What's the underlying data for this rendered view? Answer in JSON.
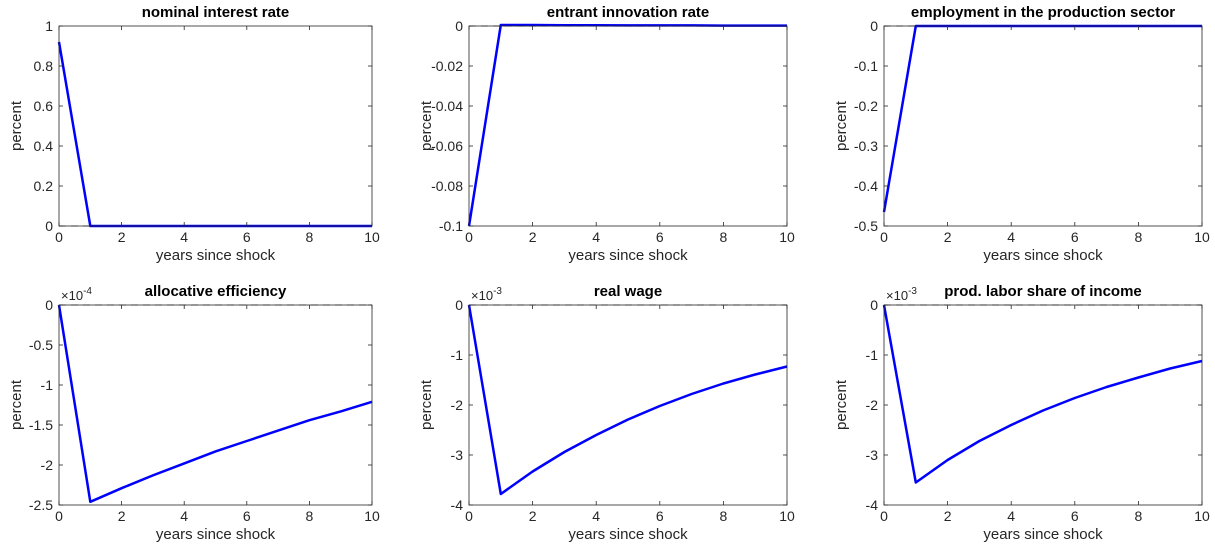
{
  "chart_data": [
    {
      "type": "line",
      "title": "nominal interest rate",
      "xlabel": "years since shock",
      "ylabel": "percent",
      "x": [
        0,
        1,
        2,
        3,
        4,
        5,
        6,
        7,
        8,
        9,
        10
      ],
      "values": [
        0.92,
        0,
        0,
        0,
        0,
        0,
        0,
        0,
        0,
        0,
        0
      ],
      "color": "#0000ff",
      "xlim": [
        0,
        10
      ],
      "xticks": [
        0,
        2,
        4,
        6,
        8,
        10
      ],
      "ylim": [
        0,
        1
      ],
      "yticks": [
        0,
        0.2,
        0.4,
        0.6,
        0.8,
        1
      ],
      "zero_line": true
    },
    {
      "type": "line",
      "title": "entrant innovation rate",
      "xlabel": "years since shock",
      "ylabel": "percent",
      "x": [
        0,
        1,
        2,
        3,
        4,
        5,
        6,
        7,
        8,
        9,
        10
      ],
      "values": [
        -0.1,
        0.0005,
        0.0005,
        0.0004,
        0.0004,
        0.0003,
        0.0003,
        0.0003,
        0.0002,
        0.0002,
        0.0002
      ],
      "color": "#0000ff",
      "xlim": [
        0,
        10
      ],
      "xticks": [
        0,
        2,
        4,
        6,
        8,
        10
      ],
      "ylim": [
        -0.1,
        0
      ],
      "yticks": [
        -0.1,
        -0.08,
        -0.06,
        -0.04,
        -0.02,
        0
      ],
      "zero_line": true
    },
    {
      "type": "line",
      "title": "employment in the production sector",
      "xlabel": "years since shock",
      "ylabel": "percent",
      "x": [
        0,
        1,
        2,
        3,
        4,
        5,
        6,
        7,
        8,
        9,
        10
      ],
      "values": [
        -0.465,
        0,
        0,
        0,
        0,
        0,
        0,
        0,
        0,
        0,
        0
      ],
      "color": "#0000ff",
      "xlim": [
        0,
        10
      ],
      "xticks": [
        0,
        2,
        4,
        6,
        8,
        10
      ],
      "ylim": [
        -0.5,
        0
      ],
      "yticks": [
        -0.5,
        -0.4,
        -0.3,
        -0.2,
        -0.1,
        0
      ],
      "zero_line": true
    },
    {
      "type": "line",
      "title": "allocative efficiency",
      "xlabel": "years since shock",
      "ylabel": "percent",
      "y_multiplier_base": "×10",
      "y_multiplier_exponent": "-4",
      "x": [
        0,
        1,
        2,
        3,
        4,
        5,
        6,
        7,
        8,
        9,
        10
      ],
      "values": [
        0,
        -2.46,
        -2.29,
        -2.13,
        -1.98,
        -1.83,
        -1.7,
        -1.57,
        -1.44,
        -1.33,
        -1.21
      ],
      "color": "#0000ff",
      "xlim": [
        0,
        10
      ],
      "xticks": [
        0,
        2,
        4,
        6,
        8,
        10
      ],
      "ylim": [
        -2.5,
        0
      ],
      "yticks": [
        -2.5,
        -2,
        -1.5,
        -1,
        -0.5,
        0
      ],
      "zero_line": true
    },
    {
      "type": "line",
      "title": "real wage",
      "xlabel": "years since shock",
      "ylabel": "percent",
      "y_multiplier_base": "×10",
      "y_multiplier_exponent": "-3",
      "x": [
        0,
        1,
        2,
        3,
        4,
        5,
        6,
        7,
        8,
        9,
        10
      ],
      "values": [
        0,
        -3.78,
        -3.33,
        -2.94,
        -2.6,
        -2.29,
        -2.02,
        -1.78,
        -1.57,
        -1.39,
        -1.23
      ],
      "color": "#0000ff",
      "xlim": [
        0,
        10
      ],
      "xticks": [
        0,
        2,
        4,
        6,
        8,
        10
      ],
      "ylim": [
        -4,
        0
      ],
      "yticks": [
        -4,
        -3,
        -2,
        -1,
        0
      ],
      "zero_line": true
    },
    {
      "type": "line",
      "title": "prod. labor share of income",
      "xlabel": "years since shock",
      "ylabel": "percent",
      "y_multiplier_base": "×10",
      "y_multiplier_exponent": "-3",
      "x": [
        0,
        1,
        2,
        3,
        4,
        5,
        6,
        7,
        8,
        9,
        10
      ],
      "values": [
        0,
        -3.55,
        -3.1,
        -2.72,
        -2.4,
        -2.11,
        -1.86,
        -1.64,
        -1.45,
        -1.27,
        -1.12
      ],
      "color": "#0000ff",
      "xlim": [
        0,
        10
      ],
      "xticks": [
        0,
        2,
        4,
        6,
        8,
        10
      ],
      "ylim": [
        -4,
        0
      ],
      "yticks": [
        -4,
        -3,
        -2,
        -1,
        0
      ],
      "zero_line": true
    }
  ]
}
